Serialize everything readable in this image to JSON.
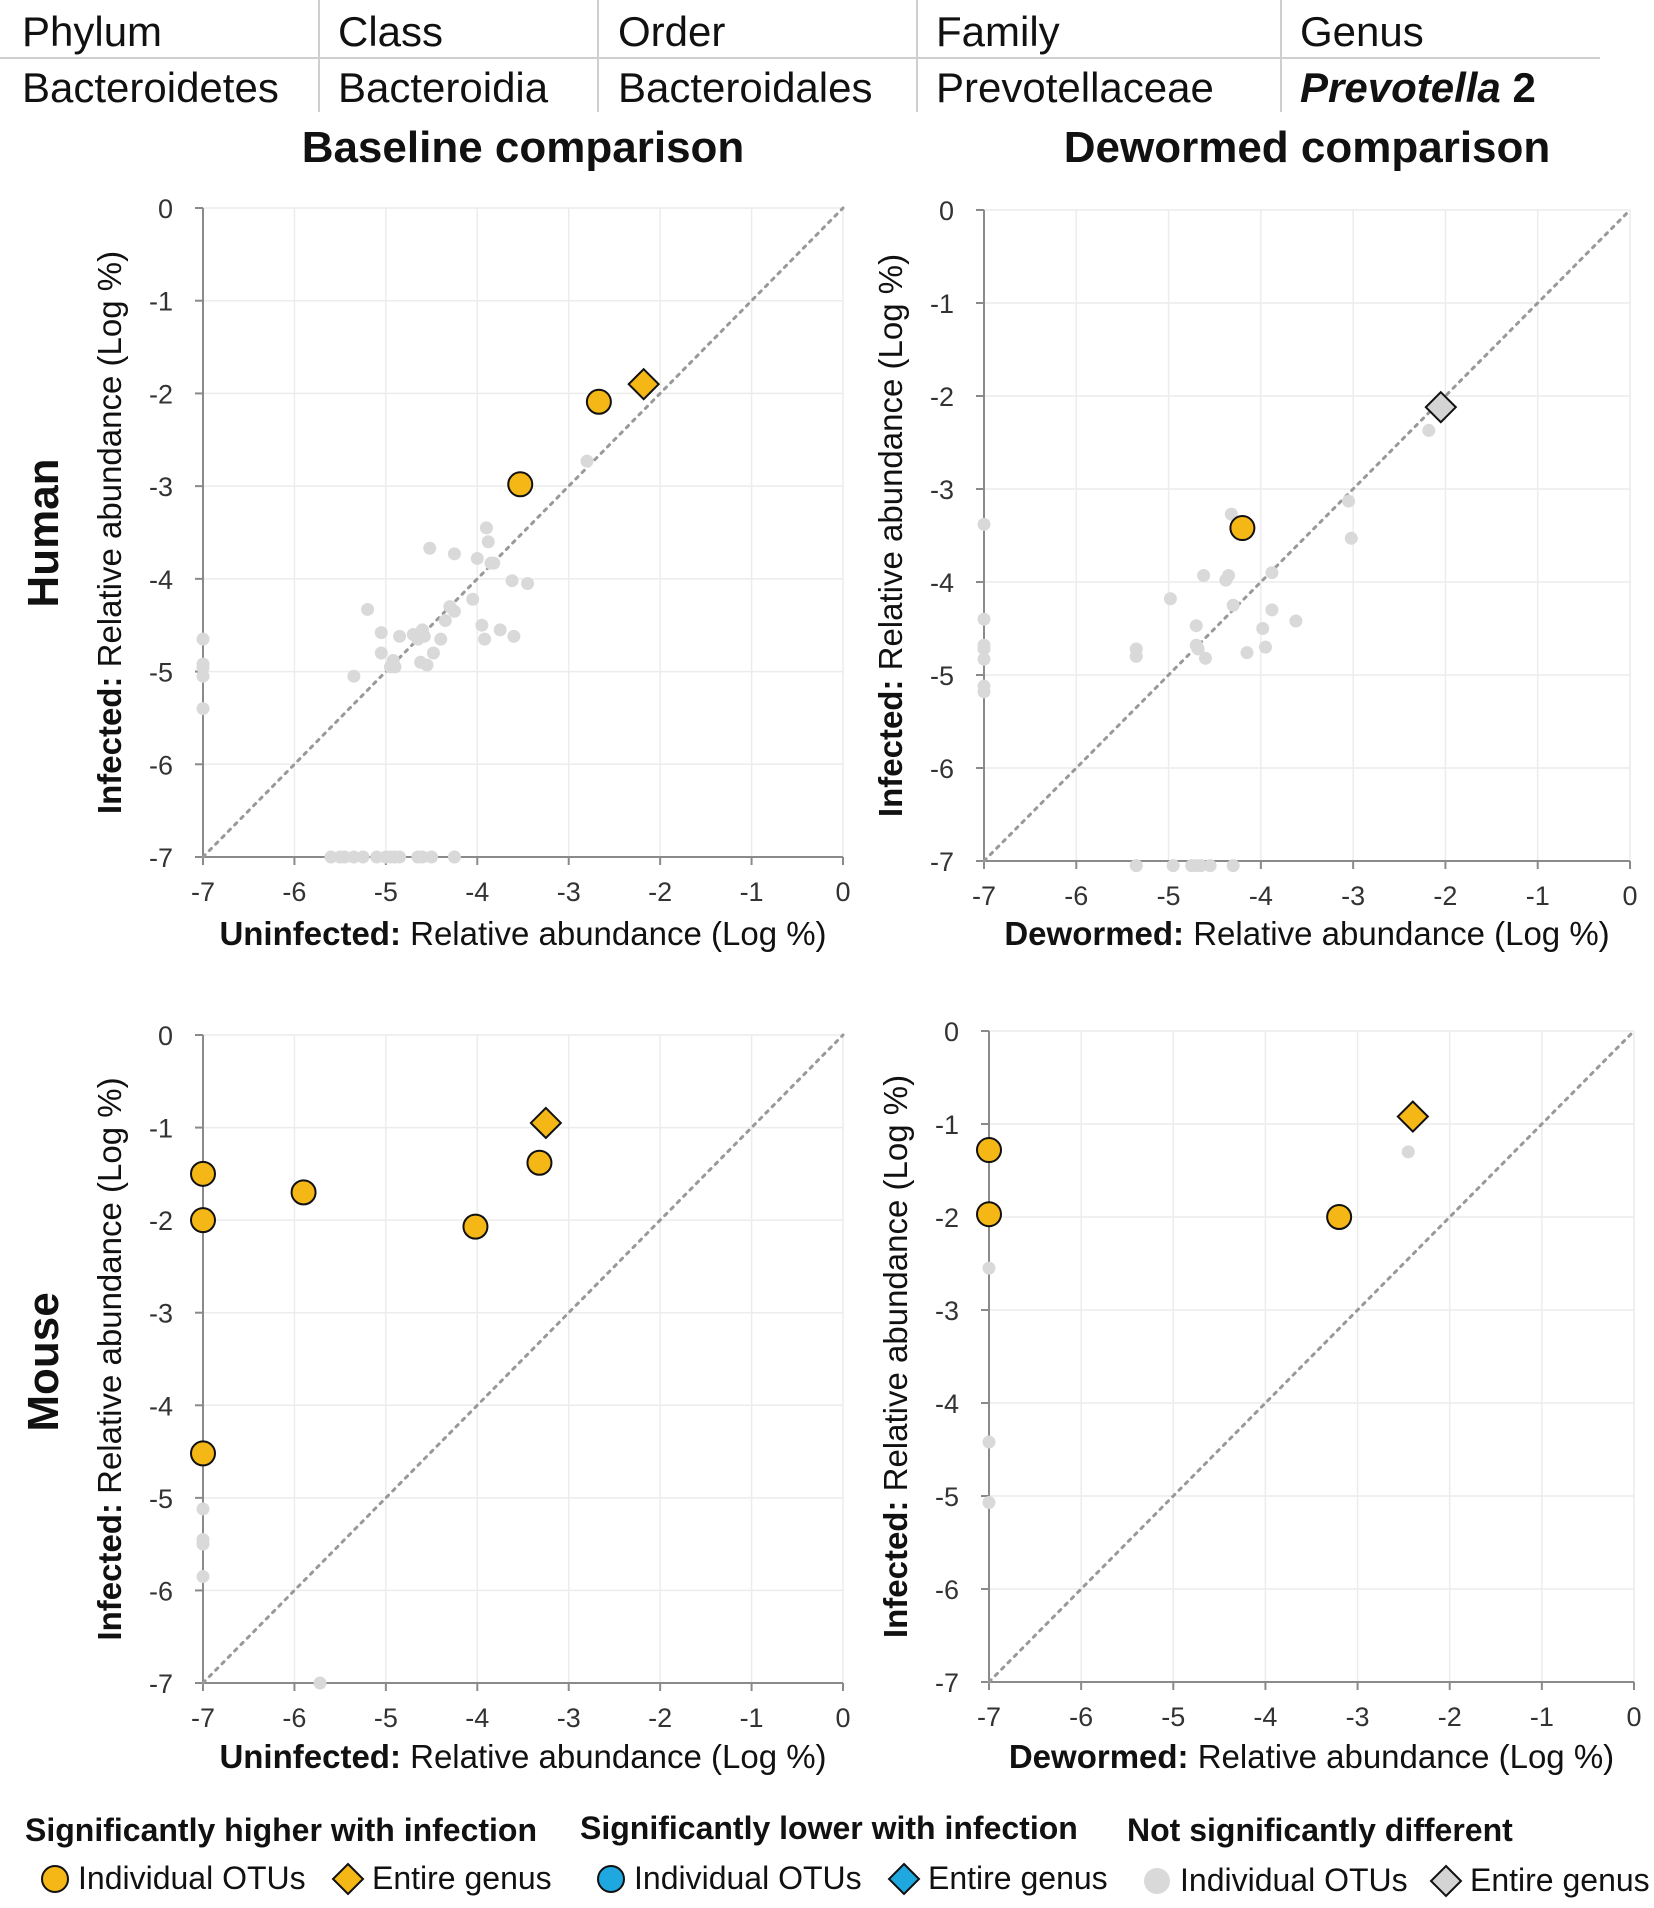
{
  "taxonomy": {
    "headers": [
      "Phylum",
      "Class",
      "Order",
      "Family",
      "Genus"
    ],
    "values": [
      "Bacteroidetes",
      "Bacteroidia",
      "Bacteroidales",
      "Prevotellaceae",
      "Prevotella",
      "2"
    ]
  },
  "row_labels": {
    "human": "Human",
    "mouse": "Mouse"
  },
  "colors": {
    "higher": "#F5B716",
    "lower": "#1FA7E0",
    "notsig": "#d9d9d9",
    "notsig_genus": "#d4d4d4",
    "grid": "#ececec",
    "diag": "#999999"
  },
  "chart_data": [
    {
      "type": "scatter",
      "id": "human-baseline",
      "title": "Baseline comparison",
      "xlabel_bold": "Uninfected:",
      "xlabel": "Relative abundance (Log %)",
      "ylabel_bold": "Infected:",
      "ylabel": "Relative abundance (Log %)",
      "xlim": [
        -7,
        0
      ],
      "ylim": [
        -7,
        0
      ],
      "xticks": [
        "-7",
        "-6",
        "-5",
        "-4",
        "-3",
        "-2",
        "-1",
        "0"
      ],
      "yticks": [
        "-7",
        "-6",
        "-5",
        "-4",
        "-3",
        "-2",
        "-1",
        "0"
      ],
      "diagonal": true,
      "grid": true,
      "individual_otus_not_significant": [
        [
          -7,
          -4.65
        ],
        [
          -7,
          -4.92
        ],
        [
          -7,
          -4.96
        ],
        [
          -7,
          -5.05
        ],
        [
          -7,
          -5.4
        ],
        [
          -5.35,
          -5.05
        ],
        [
          -5.2,
          -4.33
        ],
        [
          -5.05,
          -4.58
        ],
        [
          -5.05,
          -4.8
        ],
        [
          -4.95,
          -4.95
        ],
        [
          -4.92,
          -4.88
        ],
        [
          -4.9,
          -4.95
        ],
        [
          -4.85,
          -4.62
        ],
        [
          -4.7,
          -4.6
        ],
        [
          -4.65,
          -4.65
        ],
        [
          -4.62,
          -4.9
        ],
        [
          -4.6,
          -4.55
        ],
        [
          -4.58,
          -4.62
        ],
        [
          -4.55,
          -4.93
        ],
        [
          -4.52,
          -3.67
        ],
        [
          -4.48,
          -4.8
        ],
        [
          -4.4,
          -4.65
        ],
        [
          -4.35,
          -4.45
        ],
        [
          -4.3,
          -4.3
        ],
        [
          -4.25,
          -3.73
        ],
        [
          -4.25,
          -4.35
        ],
        [
          -4.05,
          -4.22
        ],
        [
          -4.0,
          -3.78
        ],
        [
          -3.95,
          -4.5
        ],
        [
          -3.92,
          -4.65
        ],
        [
          -3.9,
          -3.45
        ],
        [
          -3.88,
          -3.6
        ],
        [
          -3.85,
          -3.83
        ],
        [
          -3.82,
          -3.83
        ],
        [
          -3.75,
          -4.55
        ],
        [
          -3.62,
          -4.02
        ],
        [
          -3.6,
          -4.62
        ],
        [
          -3.45,
          -4.05
        ],
        [
          -2.8,
          -2.73
        ],
        [
          -5.6,
          -7
        ],
        [
          -5.5,
          -7
        ],
        [
          -5.45,
          -7
        ],
        [
          -5.35,
          -7
        ],
        [
          -5.25,
          -7
        ],
        [
          -5.1,
          -7
        ],
        [
          -5.0,
          -7
        ],
        [
          -4.95,
          -7
        ],
        [
          -4.9,
          -7
        ],
        [
          -4.85,
          -7
        ],
        [
          -4.65,
          -7
        ],
        [
          -4.6,
          -7
        ],
        [
          -4.5,
          -7
        ],
        [
          -4.25,
          -7
        ]
      ],
      "individual_otus_higher": [
        [
          -3.53,
          -2.98
        ],
        [
          -2.67,
          -2.09
        ]
      ],
      "entire_genus": {
        "category": "higher",
        "x": -2.18,
        "y": -1.9
      }
    },
    {
      "type": "scatter",
      "id": "human-dewormed",
      "title": "Dewormed comparison",
      "xlabel_bold": "Dewormed:",
      "xlabel": "Relative abundance (Log %)",
      "ylabel_bold": "Infected:",
      "ylabel": "Relative abundance (Log %)",
      "xlim": [
        -7,
        0
      ],
      "ylim": [
        -7,
        0
      ],
      "xticks": [
        "-7",
        "-6",
        "-5",
        "-4",
        "-3",
        "-2",
        "-1",
        "0"
      ],
      "yticks": [
        "-7",
        "-6",
        "-5",
        "-4",
        "-3",
        "-2",
        "-1",
        "0"
      ],
      "diagonal": true,
      "grid": true,
      "individual_otus_not_significant": [
        [
          -7,
          -3.38
        ],
        [
          -7,
          -4.4
        ],
        [
          -7,
          -4.68
        ],
        [
          -7,
          -4.72
        ],
        [
          -7,
          -4.83
        ],
        [
          -7,
          -5.12
        ],
        [
          -7,
          -5.18
        ],
        [
          -5.35,
          -4.72
        ],
        [
          -5.35,
          -4.8
        ],
        [
          -4.98,
          -4.18
        ],
        [
          -4.7,
          -4.47
        ],
        [
          -4.7,
          -4.68
        ],
        [
          -4.68,
          -4.72
        ],
        [
          -4.62,
          -3.93
        ],
        [
          -4.6,
          -4.82
        ],
        [
          -4.38,
          -3.98
        ],
        [
          -4.35,
          -3.93
        ],
        [
          -4.32,
          -3.27
        ],
        [
          -4.3,
          -4.25
        ],
        [
          -4.15,
          -4.76
        ],
        [
          -3.98,
          -4.5
        ],
        [
          -3.95,
          -4.7
        ],
        [
          -3.88,
          -3.9
        ],
        [
          -3.88,
          -4.3
        ],
        [
          -3.62,
          -4.42
        ],
        [
          -3.05,
          -3.13
        ],
        [
          -3.02,
          -3.53
        ],
        [
          -2.18,
          -2.37
        ],
        [
          -5.35,
          -7.05
        ],
        [
          -4.95,
          -7.05
        ],
        [
          -4.75,
          -7.05
        ],
        [
          -4.7,
          -7.05
        ],
        [
          -4.65,
          -7.05
        ],
        [
          -4.55,
          -7.05
        ],
        [
          -4.3,
          -7.05
        ]
      ],
      "individual_otus_higher": [
        [
          -4.2,
          -3.42
        ]
      ],
      "entire_genus": {
        "category": "not_significant",
        "x": -2.05,
        "y": -2.12
      }
    },
    {
      "type": "scatter",
      "id": "mouse-baseline",
      "title": "",
      "xlabel_bold": "Uninfected:",
      "xlabel": "Relative abundance (Log %)",
      "ylabel_bold": "Infected:",
      "ylabel": "Relative abundance (Log %)",
      "xlim": [
        -7,
        0
      ],
      "ylim": [
        -7,
        0
      ],
      "xticks": [
        "-7",
        "-6",
        "-5",
        "-4",
        "-3",
        "-2",
        "-1",
        "0"
      ],
      "yticks": [
        "-7",
        "-6",
        "-5",
        "-4",
        "-3",
        "-2",
        "-1",
        "0"
      ],
      "diagonal": true,
      "grid": true,
      "individual_otus_not_significant": [
        [
          -7,
          -5.12
        ],
        [
          -7,
          -5.45
        ],
        [
          -7,
          -5.5
        ],
        [
          -7,
          -5.85
        ],
        [
          -5.72,
          -7
        ]
      ],
      "individual_otus_higher": [
        [
          -7,
          -1.5
        ],
        [
          -7,
          -2.0
        ],
        [
          -7,
          -4.52
        ],
        [
          -5.9,
          -1.7
        ],
        [
          -4.02,
          -2.07
        ],
        [
          -3.32,
          -1.38
        ]
      ],
      "entire_genus": {
        "category": "higher",
        "x": -3.25,
        "y": -0.95
      }
    },
    {
      "type": "scatter",
      "id": "mouse-dewormed",
      "title": "",
      "xlabel_bold": "Dewormed:",
      "xlabel": "Relative abundance (Log %)",
      "ylabel_bold": "Infected:",
      "ylabel": "Relative abundance (Log %)",
      "xlim": [
        -7,
        0
      ],
      "ylim": [
        -7,
        0
      ],
      "xticks": [
        "-7",
        "-6",
        "-5",
        "-4",
        "-3",
        "-2",
        "-1",
        "0"
      ],
      "yticks": [
        "-7",
        "-6",
        "-5",
        "-4",
        "-3",
        "-2",
        "-1",
        "0"
      ],
      "diagonal": true,
      "grid": true,
      "individual_otus_not_significant": [
        [
          -7,
          -2.55
        ],
        [
          -7,
          -4.42
        ],
        [
          -7,
          -5.07
        ],
        [
          -2.45,
          -1.3
        ]
      ],
      "individual_otus_higher": [
        [
          -7,
          -1.28
        ],
        [
          -7,
          -1.97
        ],
        [
          -3.2,
          -2.0
        ]
      ],
      "entire_genus": {
        "category": "higher",
        "x": -2.4,
        "y": -0.92
      }
    }
  ],
  "legend": {
    "groups": [
      {
        "key": "higher",
        "title": "Significantly higher with infection",
        "individual": "Individual OTUs",
        "genus": "Entire genus"
      },
      {
        "key": "lower",
        "title": "Significantly lower with infection",
        "individual": "Individual OTUs",
        "genus": "Entire genus"
      },
      {
        "key": "notsig",
        "title": "Not significantly different",
        "individual": "Individual OTUs",
        "genus": "Entire genus"
      }
    ]
  }
}
